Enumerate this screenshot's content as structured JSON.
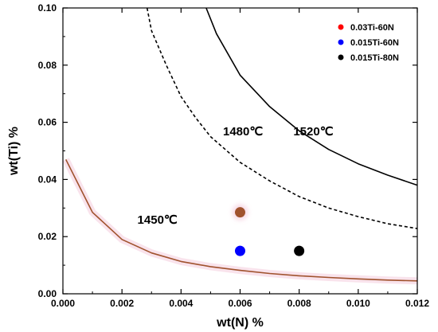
{
  "chart_data": {
    "type": "line",
    "xlabel": "wt(N) %",
    "ylabel": "wt(Ti) %",
    "xlim": [
      0.0,
      0.012
    ],
    "ylim": [
      0.0,
      0.1
    ],
    "x_ticks": [
      "0.000",
      "0.002",
      "0.004",
      "0.006",
      "0.008",
      "0.010",
      "0.012"
    ],
    "y_ticks": [
      "0.00",
      "0.02",
      "0.04",
      "0.06",
      "0.08",
      "0.10"
    ],
    "grid": false,
    "legend_position": "top-right",
    "curves": [
      {
        "label": "1450℃",
        "style": "solid",
        "color": "#a0522d",
        "points": [
          [
            0.0001,
            0.047
          ],
          [
            0.001,
            0.0285
          ],
          [
            0.002,
            0.019
          ],
          [
            0.003,
            0.0143
          ],
          [
            0.004,
            0.0113
          ],
          [
            0.005,
            0.0095
          ],
          [
            0.006,
            0.0082
          ],
          [
            0.007,
            0.0071
          ],
          [
            0.008,
            0.0063
          ],
          [
            0.009,
            0.0057
          ],
          [
            0.01,
            0.0052
          ],
          [
            0.011,
            0.0048
          ],
          [
            0.012,
            0.0045
          ]
        ]
      },
      {
        "label": "1480℃",
        "style": "dashed",
        "color": "#000000",
        "points": [
          [
            0.00285,
            0.1
          ],
          [
            0.003,
            0.092
          ],
          [
            0.0035,
            0.08
          ],
          [
            0.004,
            0.069
          ],
          [
            0.0045,
            0.0615
          ],
          [
            0.005,
            0.055
          ],
          [
            0.006,
            0.046
          ],
          [
            0.007,
            0.0395
          ],
          [
            0.008,
            0.034
          ],
          [
            0.009,
            0.03
          ],
          [
            0.01,
            0.027
          ],
          [
            0.011,
            0.0245
          ],
          [
            0.012,
            0.0228
          ]
        ]
      },
      {
        "label": "1520℃",
        "style": "solid",
        "color": "#000000",
        "points": [
          [
            0.00485,
            0.1
          ],
          [
            0.0052,
            0.091
          ],
          [
            0.006,
            0.0765
          ],
          [
            0.007,
            0.0655
          ],
          [
            0.008,
            0.057
          ],
          [
            0.009,
            0.0505
          ],
          [
            0.01,
            0.0455
          ],
          [
            0.011,
            0.0415
          ],
          [
            0.012,
            0.038
          ]
        ]
      }
    ],
    "series": [
      {
        "name": "0.03Ti-60N",
        "color": "#ff0000",
        "x": 0.006,
        "y": 0.0285
      },
      {
        "name": "0.015Ti-60N",
        "color": "#0000ff",
        "x": 0.006,
        "y": 0.015
      },
      {
        "name": "0.015Ti-80N",
        "color": "#000000",
        "x": 0.008,
        "y": 0.015
      }
    ]
  }
}
